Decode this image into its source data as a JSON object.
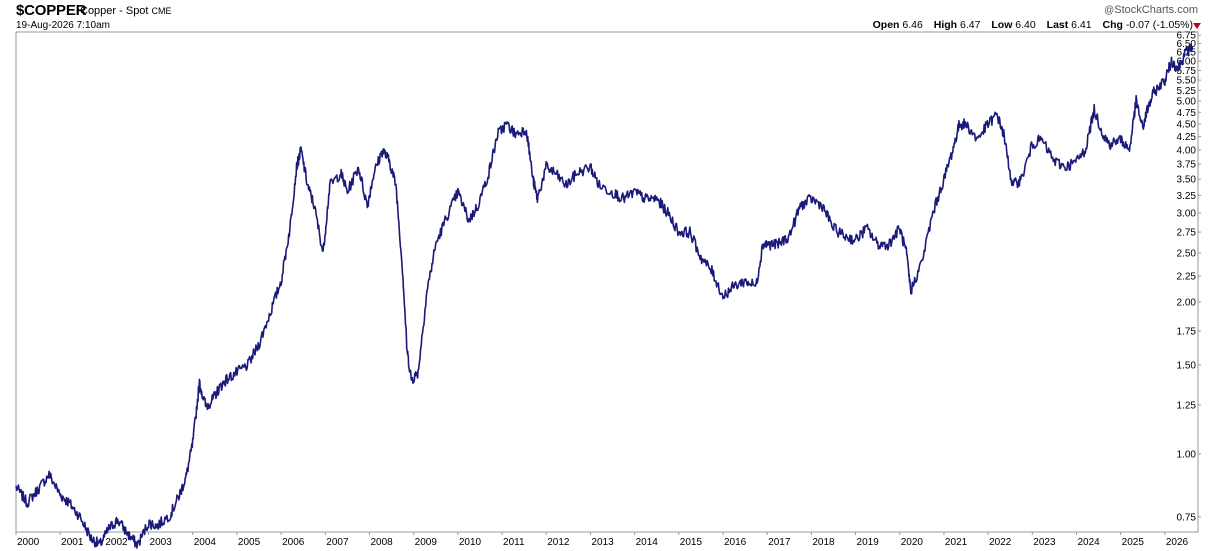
{
  "header": {
    "symbol": "$COPPER",
    "name": "Copper - Spot",
    "exchange": "CME",
    "timestamp": "19-Aug-2026 7:10am",
    "brand": "StockCharts.com",
    "brand_copyright": "@",
    "ohlc": {
      "open_label": "Open",
      "open": "6.46",
      "high_label": "High",
      "high": "6.47",
      "low_label": "Low",
      "low": "6.40",
      "last_label": "Last",
      "last": "6.41",
      "chg_label": "Chg",
      "chg": "-0.07 (-1.05%)"
    },
    "chg_color": "#c0001c"
  },
  "chart_data": {
    "type": "line",
    "title": "$COPPER Copper - Spot CME",
    "yscale": "log",
    "ylim": [
      0.7,
      6.85
    ],
    "xlim": [
      2000.0,
      2026.75
    ],
    "grid": false,
    "line_color": "#1a1a7a",
    "y_ticks": [
      "0.75",
      "1.00",
      "1.25",
      "1.50",
      "1.75",
      "2.00",
      "2.25",
      "2.50",
      "2.75",
      "3.00",
      "3.25",
      "3.50",
      "3.75",
      "4.00",
      "4.25",
      "4.50",
      "4.75",
      "5.00",
      "5.25",
      "5.50",
      "5.75",
      "6.00",
      "6.25",
      "6.50",
      "6.75"
    ],
    "x_ticks": [
      "2000",
      "2001",
      "2002",
      "2003",
      "2004",
      "2005",
      "2006",
      "2007",
      "2008",
      "2009",
      "2010",
      "2011",
      "2012",
      "2013",
      "2014",
      "2015",
      "2016",
      "2017",
      "2018",
      "2019",
      "2020",
      "2021",
      "2022",
      "2023",
      "2024",
      "2025",
      "2026"
    ],
    "series": [
      {
        "x": [
          2000.0,
          2000.25,
          2000.5,
          2000.75,
          2001.0,
          2001.2,
          2001.45,
          2001.7,
          2001.9,
          2002.1,
          2002.3,
          2002.55,
          2002.75,
          2003.0,
          2003.2,
          2003.5,
          2003.7,
          2003.85,
          2004.0,
          2004.15,
          2004.3,
          2004.45,
          2004.6,
          2004.75,
          2005.0,
          2005.25,
          2005.5,
          2005.75,
          2006.0,
          2006.2,
          2006.35,
          2006.45,
          2006.6,
          2006.75,
          2006.95,
          2007.1,
          2007.35,
          2007.5,
          2007.75,
          2007.95,
          2008.1,
          2008.3,
          2008.45,
          2008.6,
          2008.75,
          2008.85,
          2008.95,
          2009.1,
          2009.3,
          2009.5,
          2009.75,
          2010.0,
          2010.25,
          2010.45,
          2010.7,
          2010.9,
          2011.1,
          2011.3,
          2011.55,
          2011.7,
          2011.8,
          2012.0,
          2012.2,
          2012.45,
          2012.7,
          2013.0,
          2013.2,
          2013.5,
          2013.75,
          2014.0,
          2014.25,
          2014.5,
          2014.75,
          2015.0,
          2015.25,
          2015.5,
          2015.75,
          2016.0,
          2016.25,
          2016.5,
          2016.75,
          2016.9,
          2017.0,
          2017.25,
          2017.5,
          2017.75,
          2018.0,
          2018.25,
          2018.5,
          2018.75,
          2019.0,
          2019.25,
          2019.5,
          2019.75,
          2020.0,
          2020.15,
          2020.25,
          2020.5,
          2020.75,
          2021.0,
          2021.2,
          2021.35,
          2021.5,
          2021.75,
          2022.0,
          2022.2,
          2022.35,
          2022.55,
          2022.75,
          2023.0,
          2023.2,
          2023.5,
          2023.75,
          2024.0,
          2024.2,
          2024.4,
          2024.6,
          2024.75,
          2025.0,
          2025.2,
          2025.35,
          2025.5,
          2025.6,
          2025.75,
          2026.0,
          2026.15,
          2026.3,
          2026.45,
          2026.62
        ],
        "y": [
          0.86,
          0.8,
          0.85,
          0.91,
          0.83,
          0.8,
          0.75,
          0.68,
          0.66,
          0.71,
          0.74,
          0.69,
          0.66,
          0.73,
          0.72,
          0.76,
          0.83,
          0.9,
          1.05,
          1.38,
          1.24,
          1.28,
          1.35,
          1.4,
          1.45,
          1.5,
          1.65,
          1.9,
          2.2,
          2.8,
          3.7,
          4.0,
          3.4,
          3.1,
          2.5,
          3.4,
          3.6,
          3.3,
          3.7,
          3.1,
          3.6,
          4.0,
          3.8,
          3.4,
          2.3,
          1.6,
          1.4,
          1.45,
          2.1,
          2.6,
          2.95,
          3.3,
          2.9,
          3.1,
          3.6,
          4.3,
          4.5,
          4.3,
          4.4,
          3.5,
          3.2,
          3.7,
          3.6,
          3.4,
          3.6,
          3.7,
          3.4,
          3.3,
          3.2,
          3.3,
          3.2,
          3.2,
          3.0,
          2.75,
          2.75,
          2.45,
          2.3,
          2.05,
          2.15,
          2.2,
          2.15,
          2.6,
          2.6,
          2.6,
          2.7,
          3.1,
          3.2,
          3.1,
          2.8,
          2.7,
          2.65,
          2.8,
          2.6,
          2.6,
          2.8,
          2.5,
          2.1,
          2.4,
          3.0,
          3.5,
          4.0,
          4.5,
          4.5,
          4.2,
          4.5,
          4.7,
          4.3,
          3.4,
          3.5,
          4.1,
          4.2,
          3.8,
          3.7,
          3.8,
          4.0,
          4.8,
          4.3,
          4.1,
          4.2,
          4.0,
          5.0,
          4.4,
          4.8,
          5.2,
          5.5,
          6.0,
          5.8,
          6.2,
          6.4
        ]
      }
    ]
  }
}
